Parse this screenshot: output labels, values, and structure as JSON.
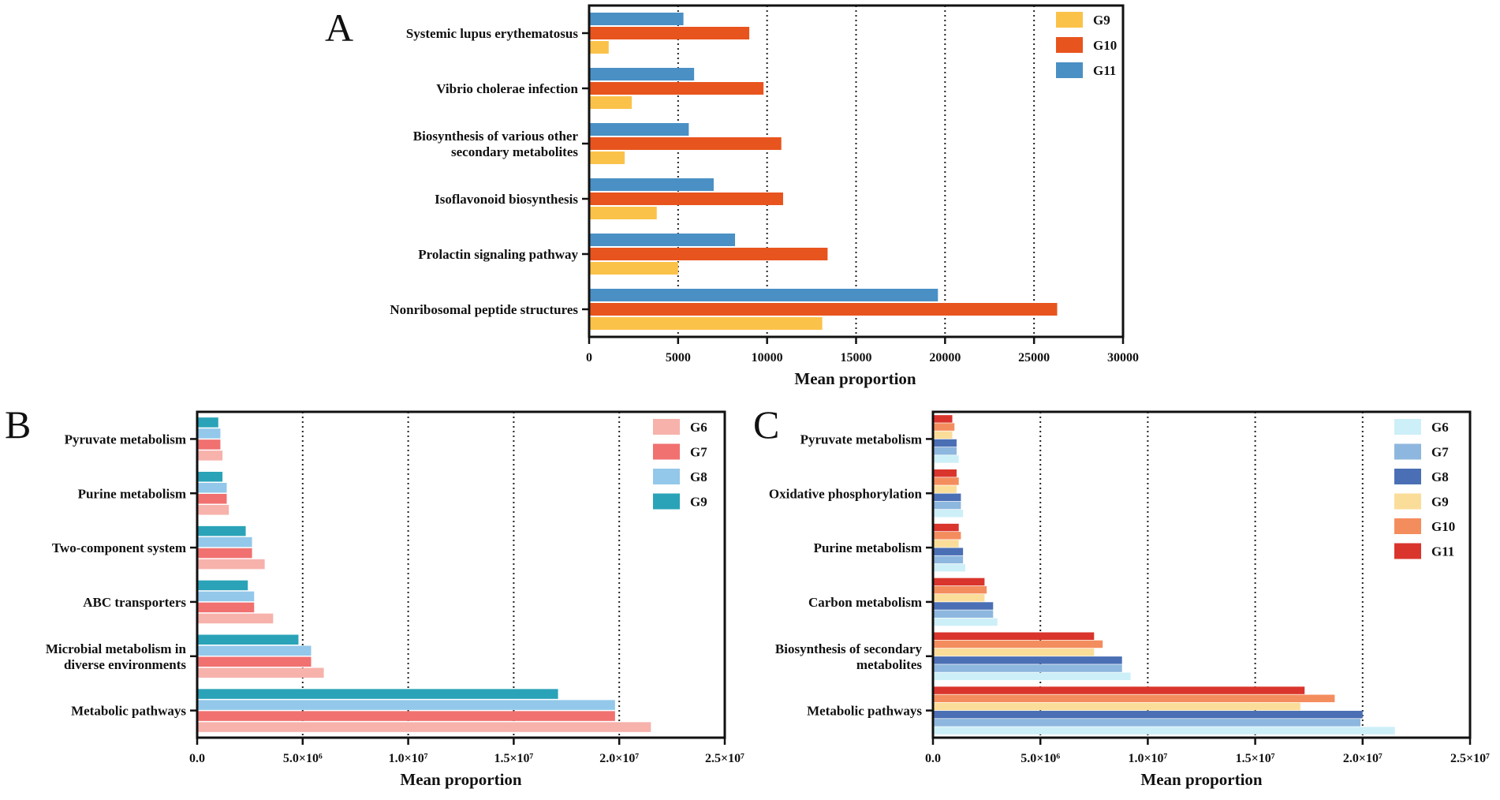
{
  "chart_data": [
    {
      "panel": "A",
      "type": "bar",
      "orientation": "horizontal",
      "categories": [
        "Systemic lupus erythematosus",
        "Vibrio cholerae infection",
        "Biosynthesis of various other\nsecondary metabolites",
        "Isoflavonoid biosynthesis",
        "Prolactin signaling pathway",
        "Nonribosomal peptide structures"
      ],
      "series": [
        {
          "name": "G9",
          "color": "#FBC24A",
          "values": [
            1100,
            2400,
            2000,
            3800,
            5000,
            13100
          ]
        },
        {
          "name": "G10",
          "color": "#E8541E",
          "values": [
            9000,
            9800,
            10800,
            10900,
            13400,
            26300
          ]
        },
        {
          "name": "G11",
          "color": "#4A90C4",
          "values": [
            5300,
            5900,
            5600,
            7000,
            8200,
            19600
          ]
        }
      ],
      "xlabel": "Mean proportion",
      "xlim": [
        0,
        30000
      ],
      "ticks": [
        0,
        5000,
        10000,
        15000,
        20000,
        25000,
        30000
      ],
      "tick_labels": [
        "0",
        "5000",
        "10000",
        "15000",
        "20000",
        "25000",
        "30000"
      ],
      "gridlines": "dotted vertical",
      "legend": "top-right"
    },
    {
      "panel": "B",
      "type": "bar",
      "orientation": "horizontal",
      "categories": [
        "Pyruvate metabolism",
        "Purine metabolism",
        "Two-component system",
        "ABC transporters",
        "Microbial metabolism in\ndiverse environments",
        "Metabolic pathways"
      ],
      "series": [
        {
          "name": "G6",
          "color": "#F7B2AC",
          "values": [
            1200000,
            1500000,
            3200000,
            3600000,
            6000000,
            21500000
          ]
        },
        {
          "name": "G7",
          "color": "#F07170",
          "values": [
            1100000,
            1400000,
            2600000,
            2700000,
            5400000,
            19800000
          ]
        },
        {
          "name": "G8",
          "color": "#93C8EA",
          "values": [
            1100000,
            1400000,
            2600000,
            2700000,
            5400000,
            19800000
          ]
        },
        {
          "name": "G9",
          "color": "#2AA3B8",
          "values": [
            1000000,
            1200000,
            2300000,
            2400000,
            4800000,
            17100000
          ]
        }
      ],
      "xlabel": "Mean proportion",
      "xlim": [
        0,
        25000000
      ],
      "ticks": [
        0,
        5000000,
        10000000,
        15000000,
        20000000,
        25000000
      ],
      "tick_labels": [
        "0.0",
        "5.0×10⁶",
        "1.0×10⁷",
        "1.5×10⁷",
        "2.0×10⁷",
        "2.5×10⁷"
      ],
      "gridlines": "dotted vertical",
      "legend": "top-right"
    },
    {
      "panel": "C",
      "type": "bar",
      "orientation": "horizontal",
      "categories": [
        "Pyruvate metabolism",
        "Oxidative phosphorylation",
        "Purine metabolism",
        "Carbon metabolism",
        "Biosynthesis of secondary\nmetabolites",
        "Metabolic pathways"
      ],
      "series": [
        {
          "name": "G6",
          "color": "#CDEFF8",
          "values": [
            1200000,
            1400000,
            1500000,
            3000000,
            9200000,
            21500000
          ]
        },
        {
          "name": "G7",
          "color": "#8DB7DE",
          "values": [
            1100000,
            1300000,
            1400000,
            2800000,
            8800000,
            19900000
          ]
        },
        {
          "name": "G8",
          "color": "#4A6FB5",
          "values": [
            1100000,
            1300000,
            1400000,
            2800000,
            8800000,
            20000000
          ]
        },
        {
          "name": "G9",
          "color": "#FBDD9A",
          "values": [
            900000,
            1100000,
            1200000,
            2400000,
            7500000,
            17100000
          ]
        },
        {
          "name": "G10",
          "color": "#F48D5E",
          "values": [
            1000000,
            1200000,
            1300000,
            2500000,
            7900000,
            18700000
          ]
        },
        {
          "name": "G11",
          "color": "#D9352C",
          "values": [
            900000,
            1100000,
            1200000,
            2400000,
            7500000,
            17300000
          ]
        }
      ],
      "xlabel": "Mean proportion",
      "xlim": [
        0,
        25000000
      ],
      "ticks": [
        0,
        5000000,
        10000000,
        15000000,
        20000000,
        25000000
      ],
      "tick_labels": [
        "0.0",
        "5.0×10⁶",
        "1.0×10⁷",
        "1.5×10⁷",
        "2.0×10⁷",
        "2.5×10⁷"
      ],
      "gridlines": "dotted vertical",
      "legend": "top-right"
    }
  ]
}
